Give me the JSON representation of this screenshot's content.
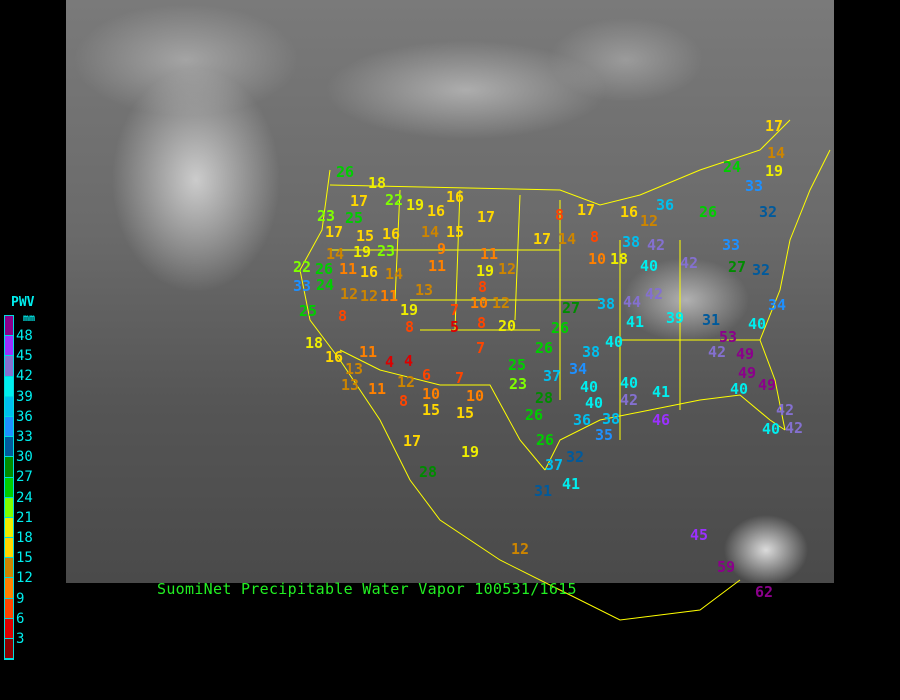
{
  "title": "SuomiNet Precipitable Water Vapor 100531/1615",
  "legend": {
    "title": "PWV",
    "unit": "mm",
    "labels": [
      "48",
      "45",
      "42",
      "39",
      "36",
      "33",
      "30",
      "27",
      "24",
      "21",
      "18",
      "15",
      "12",
      "9",
      "6",
      "3"
    ],
    "colors": [
      "#8b008b",
      "#9b30ff",
      "#8470d0",
      "#00eeee",
      "#00bfee",
      "#1e90ff",
      "#005a9c",
      "#008b00",
      "#00cd00",
      "#7fff00",
      "#eeee00",
      "#ffd700",
      "#cd8500",
      "#ff8000",
      "#ff4500",
      "#dd0000",
      "#8b0000"
    ]
  },
  "boundary_color": "#ffff00",
  "stations": [
    "26",
    "18",
    "22",
    "17",
    "19",
    "16",
    "16",
    "17",
    "23",
    "25",
    "17",
    "15",
    "16",
    "14",
    "15",
    "11",
    "9",
    "17",
    "14",
    "8",
    "17",
    "19",
    "23",
    "14",
    "22",
    "26",
    "11",
    "16",
    "14",
    "33",
    "24",
    "12",
    "12",
    "11",
    "19",
    "13",
    "11",
    "12",
    "19",
    "10",
    "12",
    "8",
    "25",
    "8",
    "8",
    "7",
    "5",
    "8",
    "20",
    "27",
    "26",
    "10",
    "18",
    "38",
    "42",
    "40",
    "42",
    "38",
    "44",
    "42",
    "41",
    "39",
    "31",
    "40",
    "38",
    "7",
    "18",
    "16",
    "11",
    "13",
    "13",
    "4",
    "4",
    "12",
    "6",
    "11",
    "8",
    "10",
    "7",
    "10",
    "15",
    "15",
    "25",
    "23",
    "26",
    "37",
    "34",
    "40",
    "28",
    "26",
    "40",
    "36",
    "42",
    "40",
    "41",
    "38",
    "46",
    "35",
    "26",
    "37",
    "32",
    "41",
    "31",
    "19",
    "17",
    "28",
    "12",
    "45",
    "53",
    "42",
    "49",
    "49",
    "49",
    "40",
    "42",
    "40",
    "42",
    "40",
    "34",
    "24",
    "33",
    "17",
    "14",
    "19",
    "26",
    "32",
    "33",
    "27",
    "32",
    "16",
    "12",
    "36",
    "8",
    "59",
    "62"
  ]
}
